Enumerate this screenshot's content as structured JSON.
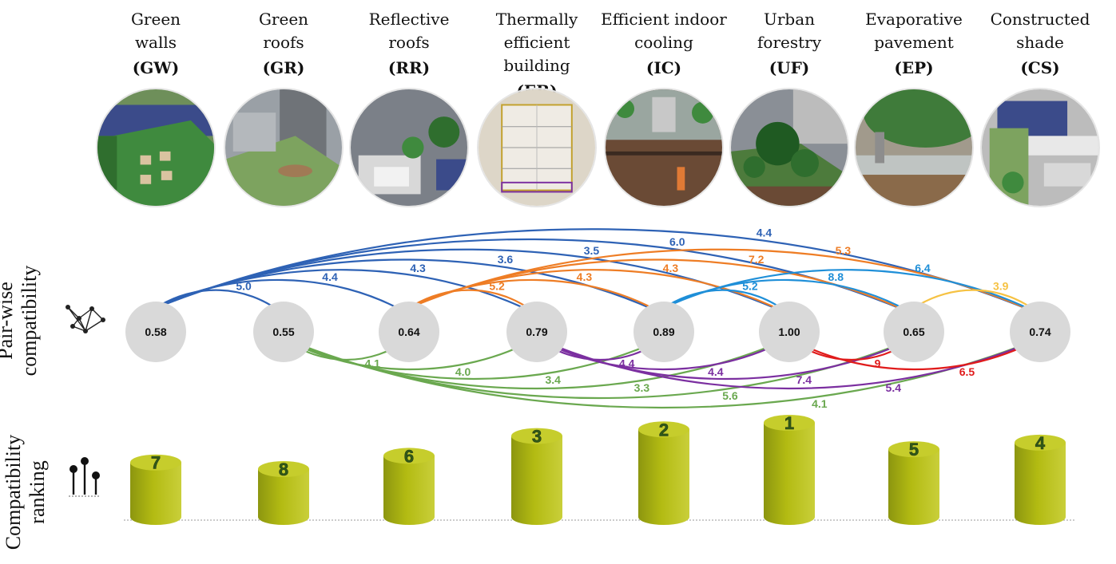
{
  "side_labels": {
    "pairwise": [
      "Pair-wise",
      "compatibility"
    ],
    "ranking": [
      "Compatibility",
      "ranking"
    ]
  },
  "strategies": [
    {
      "id": "GW",
      "name": [
        "Green",
        "walls"
      ],
      "code": "(GW)",
      "score": "0.58",
      "rank": "7",
      "rank_value": 7,
      "photo": "green-walls-photo"
    },
    {
      "id": "GR",
      "name": [
        "Green",
        "roofs"
      ],
      "code": "(GR)",
      "score": "0.55",
      "rank": "8",
      "rank_value": 8,
      "photo": "green-roofs-photo"
    },
    {
      "id": "RR",
      "name": [
        "Reflective",
        "roofs"
      ],
      "code": "(RR)",
      "score": "0.64",
      "rank": "6",
      "rank_value": 6,
      "photo": "reflective-roofs-photo"
    },
    {
      "id": "EB",
      "name": [
        "Thermally",
        "efficient building"
      ],
      "code": "(EB)",
      "score": "0.79",
      "rank": "3",
      "rank_value": 3,
      "photo": "efficient-building-photo"
    },
    {
      "id": "IC",
      "name": [
        "Efficient indoor",
        "cooling"
      ],
      "code": "(IC)",
      "score": "0.89",
      "rank": "2",
      "rank_value": 2,
      "photo": "indoor-cooling-photo"
    },
    {
      "id": "UF",
      "name": [
        "Urban",
        "forestry"
      ],
      "code": "(UF)",
      "score": "1.00",
      "rank": "1",
      "rank_value": 1,
      "photo": "urban-forestry-photo"
    },
    {
      "id": "EP",
      "name": [
        "Evaporative",
        "pavement"
      ],
      "code": "(EP)",
      "score": "0.65",
      "rank": "5",
      "rank_value": 5,
      "photo": "evaporative-pavement-photo"
    },
    {
      "id": "CS",
      "name": [
        "Constructed",
        "shade"
      ],
      "code": "(CS)",
      "score": "0.74",
      "rank": "4",
      "rank_value": 4,
      "photo": "constructed-shade-photo"
    }
  ],
  "edges": [
    {
      "from": 0,
      "to": 1,
      "label": "5.0",
      "side": "up",
      "color": "#2e62b5"
    },
    {
      "from": 0,
      "to": 2,
      "label": "4.4",
      "side": "up",
      "color": "#2e62b5"
    },
    {
      "from": 0,
      "to": 3,
      "label": "4.3",
      "side": "up",
      "color": "#2e62b5"
    },
    {
      "from": 0,
      "to": 4,
      "label": "3.6",
      "side": "up",
      "color": "#2e62b5"
    },
    {
      "from": 0,
      "to": 5,
      "label": "3.5",
      "side": "up",
      "color": "#2e62b5"
    },
    {
      "from": 0,
      "to": 6,
      "label": "6.0",
      "side": "up",
      "color": "#2e62b5"
    },
    {
      "from": 0,
      "to": 7,
      "label": "4.4",
      "side": "up",
      "color": "#2e62b5"
    },
    {
      "from": 2,
      "to": 3,
      "label": "5.2",
      "side": "up",
      "color": "#ee7d25"
    },
    {
      "from": 2,
      "to": 4,
      "label": "4.3",
      "side": "up",
      "color": "#ee7d25"
    },
    {
      "from": 2,
      "to": 5,
      "label": "4.3",
      "side": "up",
      "color": "#ee7d25"
    },
    {
      "from": 2,
      "to": 6,
      "label": "7.2",
      "side": "up",
      "color": "#ee7d25"
    },
    {
      "from": 2,
      "to": 7,
      "label": "5.3",
      "side": "up",
      "color": "#ee7d25"
    },
    {
      "from": 4,
      "to": 5,
      "label": "5.2",
      "side": "up",
      "color": "#1f8fd8"
    },
    {
      "from": 4,
      "to": 6,
      "label": "8.8",
      "side": "up",
      "color": "#1f8fd8"
    },
    {
      "from": 4,
      "to": 7,
      "label": "6.4",
      "side": "up",
      "color": "#1f8fd8"
    },
    {
      "from": 6,
      "to": 7,
      "label": "3.9",
      "side": "up",
      "color": "#f6c243"
    },
    {
      "from": 1,
      "to": 2,
      "label": "4.1",
      "side": "down",
      "color": "#6aa84f"
    },
    {
      "from": 1,
      "to": 3,
      "label": "4.0",
      "side": "down",
      "color": "#6aa84f"
    },
    {
      "from": 1,
      "to": 4,
      "label": "3.4",
      "side": "down",
      "color": "#6aa84f"
    },
    {
      "from": 1,
      "to": 5,
      "label": "3.3",
      "side": "down",
      "color": "#6aa84f"
    },
    {
      "from": 1,
      "to": 6,
      "label": "5.6",
      "side": "down",
      "color": "#6aa84f"
    },
    {
      "from": 1,
      "to": 7,
      "label": "4.1",
      "side": "down",
      "color": "#6aa84f"
    },
    {
      "from": 3,
      "to": 4,
      "label": "4.4",
      "side": "down",
      "color": "#7b2fa0"
    },
    {
      "from": 3,
      "to": 5,
      "label": "4.4",
      "side": "down",
      "color": "#7b2fa0"
    },
    {
      "from": 3,
      "to": 6,
      "label": "7.4",
      "side": "down",
      "color": "#7b2fa0"
    },
    {
      "from": 3,
      "to": 7,
      "label": "5.4",
      "side": "down",
      "color": "#7b2fa0"
    },
    {
      "from": 5,
      "to": 6,
      "label": "9",
      "side": "down",
      "color": "#e01b1b"
    },
    {
      "from": 5,
      "to": 7,
      "label": "6.5",
      "side": "down",
      "color": "#e01b1b"
    }
  ],
  "colors": {
    "node_fill": "#d9d9d9",
    "cylinder_body": "#b3bb12",
    "cylinder_top": "#c6cd2c",
    "rank_text": "#2f5a18"
  }
}
